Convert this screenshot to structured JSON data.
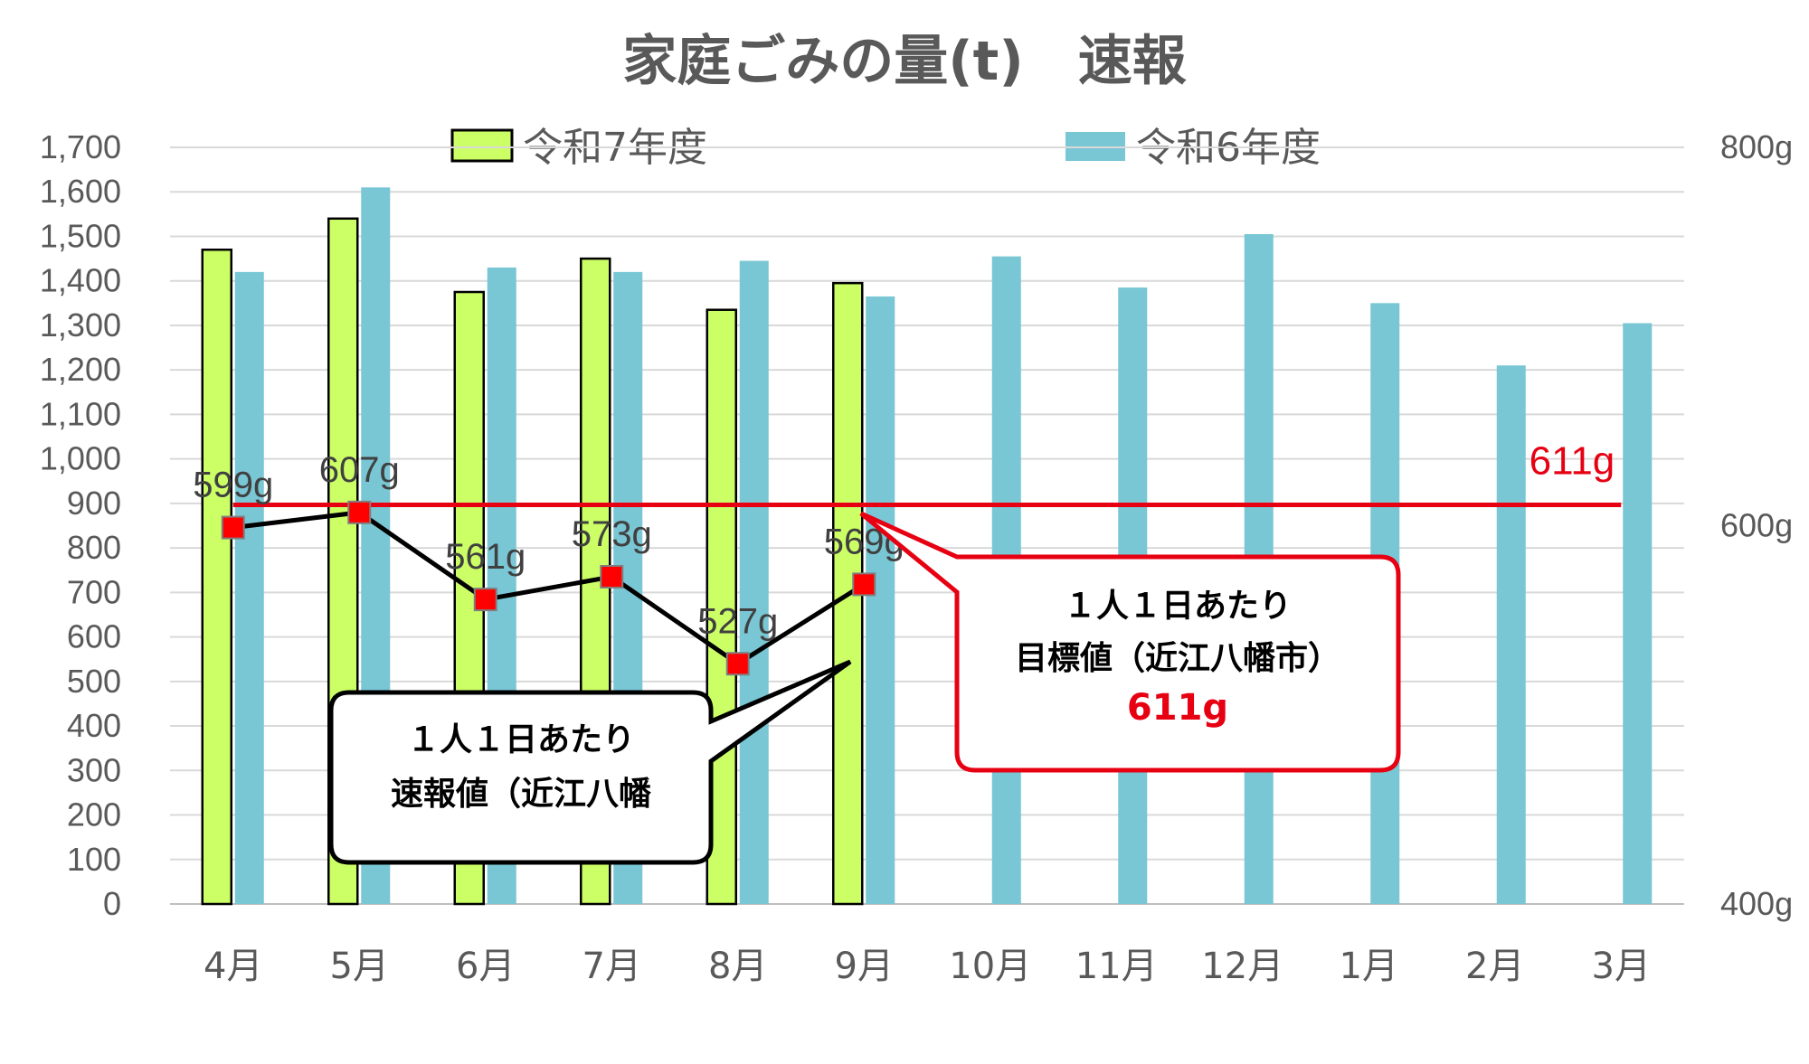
{
  "chart_data": {
    "type": "bar",
    "title": "家庭ごみの量(t)　速報",
    "categories": [
      "4月",
      "5月",
      "6月",
      "7月",
      "8月",
      "9月",
      "10月",
      "11月",
      "12月",
      "1月",
      "2月",
      "3月"
    ],
    "y_ticks": [
      "0",
      "100",
      "200",
      "300",
      "400",
      "500",
      "600",
      "700",
      "800",
      "900",
      "1,000",
      "1,100",
      "1,200",
      "1,300",
      "1,400",
      "1,500",
      "1,600",
      "1,700"
    ],
    "ylim": [
      0,
      1700
    ],
    "y2_ticks": [
      "400g",
      "600g",
      "800g"
    ],
    "y2lim": [
      400,
      800
    ],
    "legend_position": "top",
    "grid": true,
    "series": [
      {
        "name": "令和7年度",
        "type": "bar",
        "color": "#ccff66",
        "values": [
          1470,
          1540,
          1375,
          1450,
          1335,
          1395,
          null,
          null,
          null,
          null,
          null,
          null
        ]
      },
      {
        "name": "令和6年度",
        "type": "bar",
        "color": "#79c6d4",
        "values": [
          1420,
          1610,
          1430,
          1420,
          1445,
          1365,
          1455,
          1385,
          1505,
          1350,
          1210,
          1305
        ]
      }
    ],
    "per_person_series": {
      "axis": "secondary",
      "color": "#ff0000",
      "values": [
        599,
        607,
        561,
        573,
        527,
        569
      ],
      "labels": [
        "599g",
        "607g",
        "561g",
        "573g",
        "527g",
        "569g"
      ]
    },
    "target": {
      "value": 611,
      "label": "611g",
      "color": "#e60012"
    },
    "callouts": {
      "actual": {
        "line1": "１人１日あたり",
        "line2": "速報値（近江八幡"
      },
      "target": {
        "line1": "１人１日あたり",
        "line2": "目標値（近江八幡市）",
        "line3": "611g"
      }
    }
  }
}
